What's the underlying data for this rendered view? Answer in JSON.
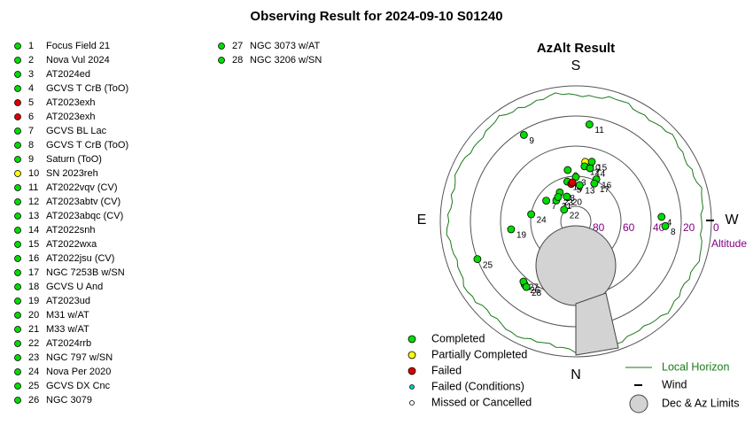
{
  "title": "Observing Result for 2024-09-10 S01240",
  "chart_data": {
    "type": "polar",
    "title": "AzAlt Result",
    "directions": {
      "south": "S",
      "east": "E",
      "west": "W",
      "north": "N"
    },
    "rlim": [
      90,
      0
    ],
    "rticks": [
      80,
      60,
      40,
      20,
      0
    ],
    "raxis_label": "Altitude",
    "statuses": [
      {
        "name": "Completed",
        "color": "#00dd00"
      },
      {
        "name": "Partially Completed",
        "color": "#ffff00"
      },
      {
        "name": "Failed",
        "color": "#dd0000"
      },
      {
        "name": "Failed (Conditions)",
        "color": "#00cccc"
      },
      {
        "name": "Missed or Cancelled",
        "color": "#ffffff"
      }
    ],
    "extra_legend": {
      "horizon": "Local Horizon",
      "wind": "Wind",
      "limits": "Dec & Az Limits"
    },
    "points": [
      {
        "label": "1",
        "name": "Focus Field 21",
        "status": 0,
        "az": 168,
        "alt": 63
      },
      {
        "label": "2",
        "name": "Nova Vul 2024",
        "status": 0,
        "az": 171,
        "alt": 55.5
      },
      {
        "label": "3",
        "name": "AT2024ed",
        "status": 0,
        "az": 180,
        "alt": 60.6
      },
      {
        "label": "4",
        "name": "GCVS T CrB (ToO)",
        "status": 0,
        "az": 267,
        "alt": 33
      },
      {
        "label": "5",
        "name": "AT2023exh",
        "status": 2,
        "az": 173,
        "alt": 65
      },
      {
        "label": "6",
        "name": "AT2023exh",
        "status": 2,
        "az": 175,
        "alt": 64
      },
      {
        "label": "7",
        "name": "GCVS BL Lac",
        "status": 0,
        "az": 125,
        "alt": 66
      },
      {
        "label": "8",
        "name": "GCVS T CrB (ToO)",
        "status": 0,
        "az": 273,
        "alt": 30.5
      },
      {
        "label": "9",
        "name": "Saturn (ToO)",
        "status": 0,
        "az": 149,
        "alt": 23
      },
      {
        "label": "10",
        "name": "SN 2023reh",
        "status": 1,
        "az": 189,
        "alt": 50
      },
      {
        "label": "11",
        "name": "AT2022vqv (CV)",
        "status": 0,
        "az": 188,
        "alt": 25
      },
      {
        "label": "12",
        "name": "AT2023abtv (CV)",
        "status": 0,
        "az": 189,
        "alt": 53
      },
      {
        "label": "13",
        "name": "AT2023abqc (CV)",
        "status": 0,
        "az": 186,
        "alt": 65.8
      },
      {
        "label": "14",
        "name": "AT2022snh",
        "status": 0,
        "az": 195,
        "alt": 53.5
      },
      {
        "label": "15",
        "name": "AT2022wxa",
        "status": 0,
        "az": 195,
        "alt": 49
      },
      {
        "label": "16",
        "name": "AT2022jsu (CV)",
        "status": 0,
        "az": 206,
        "alt": 59
      },
      {
        "label": "17",
        "name": "NGC 7253B w/SN",
        "status": 0,
        "az": 206,
        "alt": 62
      },
      {
        "label": "18",
        "name": "GCVS U And",
        "status": 0,
        "az": 151,
        "alt": 68
      },
      {
        "label": "19",
        "name": "AT2023ud",
        "status": 0,
        "az": 83,
        "alt": 46.7
      },
      {
        "label": "20",
        "name": "M31 w/AT",
        "status": 0,
        "az": 160,
        "alt": 72.5
      },
      {
        "label": "21",
        "name": "M33 w/AT",
        "status": 0,
        "az": 137,
        "alt": 71
      },
      {
        "label": "22",
        "name": "AT2024rrb",
        "status": 0,
        "az": 135,
        "alt": 79
      },
      {
        "label": "23",
        "name": "NGC 797 w/SN",
        "status": 0,
        "az": 144,
        "alt": 70
      },
      {
        "label": "24",
        "name": "Nova Per 2020",
        "status": 0,
        "az": 99,
        "alt": 60
      },
      {
        "label": "25",
        "name": "GCVS DX Cnc",
        "status": 0,
        "az": 69,
        "alt": 20
      },
      {
        "label": "26",
        "name": "NGC 3079",
        "status": 0,
        "az": 39,
        "alt": 36
      },
      {
        "label": "27",
        "name": "NGC 3073 w/AT",
        "status": 0,
        "az": 41,
        "alt": 37
      },
      {
        "label": "28",
        "name": "NGC 3206 w/SN",
        "status": 0,
        "az": 37,
        "alt": 35.4
      }
    ]
  }
}
